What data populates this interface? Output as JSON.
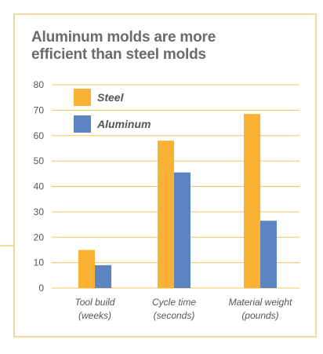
{
  "chart_data": {
    "type": "bar",
    "title_lines": [
      "Aluminum molds are more",
      "efficient than steel molds"
    ],
    "categories": [
      [
        "Tool build",
        "(weeks)"
      ],
      [
        "Cycle time",
        "(seconds)"
      ],
      [
        "Material weight",
        "(pounds)"
      ]
    ],
    "series": [
      {
        "name": "Steel",
        "color": "#f9b233",
        "values": [
          15,
          58,
          68.5
        ]
      },
      {
        "name": "Aluminum",
        "color": "#5b84c0",
        "values": [
          9,
          45.5,
          26.5
        ]
      }
    ],
    "ylim": [
      0,
      80
    ],
    "yticks": [
      0,
      10,
      20,
      30,
      40,
      50,
      60,
      70,
      80
    ],
    "grid": true,
    "gridline_color": "#f3c560",
    "legend_position": "top-left"
  }
}
